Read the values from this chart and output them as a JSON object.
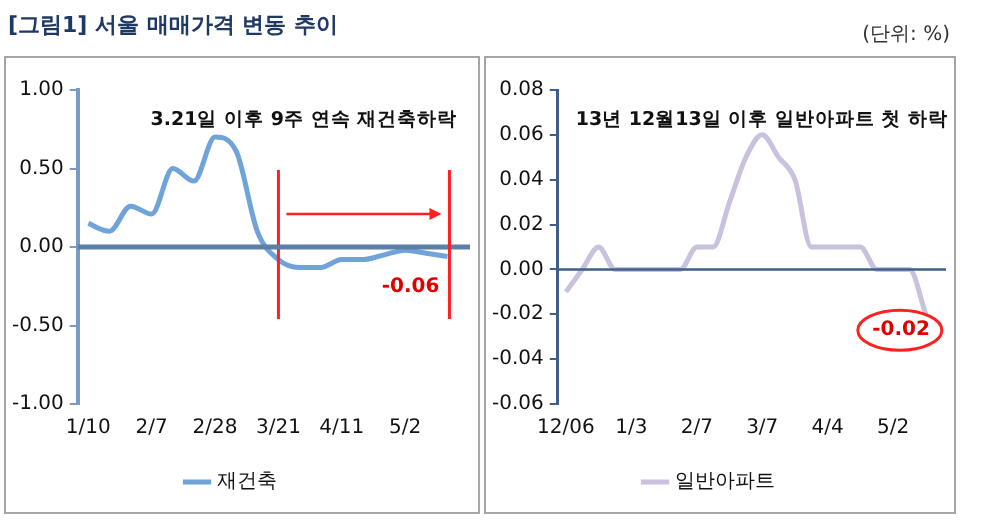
{
  "chart_data": [
    {
      "type": "line",
      "title": "[그림1] 서울 매매가격 변동 추이",
      "annotations": [
        "3.21일 이후 9주 연속 재건축하락"
      ],
      "categories": [
        "1/10",
        null,
        null,
        "2/7",
        null,
        null,
        "2/28",
        null,
        null,
        "3/21",
        null,
        null,
        "4/11",
        null,
        null,
        "5/2",
        null,
        null
      ],
      "series": [
        {
          "name": "재건축",
          "color": "#6fa3da",
          "values": [
            0.15,
            0.1,
            0.26,
            0.21,
            0.5,
            0.42,
            0.7,
            0.61,
            0.1,
            -0.08,
            -0.13,
            -0.13,
            -0.08,
            -0.08,
            -0.05,
            -0.02,
            -0.04,
            -0.06
          ],
          "value_labels": [
            null,
            null,
            null,
            null,
            null,
            null,
            null,
            null,
            null,
            null,
            null,
            null,
            null,
            null,
            null,
            null,
            null,
            "-0.06"
          ]
        }
      ],
      "ylim": [
        -1,
        1
      ],
      "yticks": [
        {
          "value": -1,
          "label": "-1.00"
        },
        {
          "value": -0.5,
          "label": "-0.50"
        },
        {
          "value": 0,
          "label": "0.00"
        },
        {
          "value": 0.5,
          "label": "0.50"
        },
        {
          "value": 1,
          "label": "1.00"
        }
      ],
      "ref_lines": [
        {
          "axis": "x",
          "value": "3/21",
          "color": "#ff2020"
        },
        {
          "axis": "y",
          "value": 0,
          "color": "#5b7fa6"
        }
      ],
      "legend": "bottom",
      "marker": "none",
      "line_style": "solid"
    },
    {
      "type": "line",
      "subtitle": "(단위: %)",
      "annotations": [
        "13년 12월13일 이후 일반아파트 첫 하락"
      ],
      "categories": [
        "12/06",
        null,
        null,
        null,
        "1/3",
        null,
        null,
        null,
        "2/7",
        null,
        null,
        null,
        "3/7",
        null,
        null,
        null,
        "4/4",
        null,
        null,
        null,
        "5/2",
        null,
        null
      ],
      "series": [
        {
          "name": "일반아파트",
          "color": "#c9c1de",
          "values": [
            -0.01,
            0.0,
            0.01,
            0.0,
            0.0,
            0.0,
            0.0,
            0.0,
            0.01,
            0.01,
            0.03,
            0.05,
            0.06,
            0.05,
            0.04,
            0.01,
            0.01,
            0.01,
            0.01,
            0.0,
            0.0,
            0.0,
            -0.02
          ],
          "value_labels": [
            null,
            null,
            null,
            null,
            null,
            null,
            null,
            null,
            null,
            null,
            null,
            null,
            null,
            null,
            null,
            null,
            null,
            null,
            null,
            null,
            null,
            null,
            "-0.02"
          ]
        }
      ],
      "ylim": [
        -0.06,
        0.08
      ],
      "yticks": [
        {
          "value": -0.06,
          "label": "-0.06"
        },
        {
          "value": -0.04,
          "label": "-0.04"
        },
        {
          "value": -0.02,
          "label": "-0.02"
        },
        {
          "value": 0,
          "label": "0.00"
        },
        {
          "value": 0.02,
          "label": "0.02"
        },
        {
          "value": 0.04,
          "label": "0.04"
        },
        {
          "value": 0.06,
          "label": "0.06"
        },
        {
          "value": 0.08,
          "label": "0.08"
        }
      ],
      "ref_lines": [
        {
          "axis": "y",
          "value": 0,
          "color": "#3f5f8a"
        }
      ],
      "legend": "bottom",
      "marker": "none",
      "line_style": "solid"
    }
  ]
}
